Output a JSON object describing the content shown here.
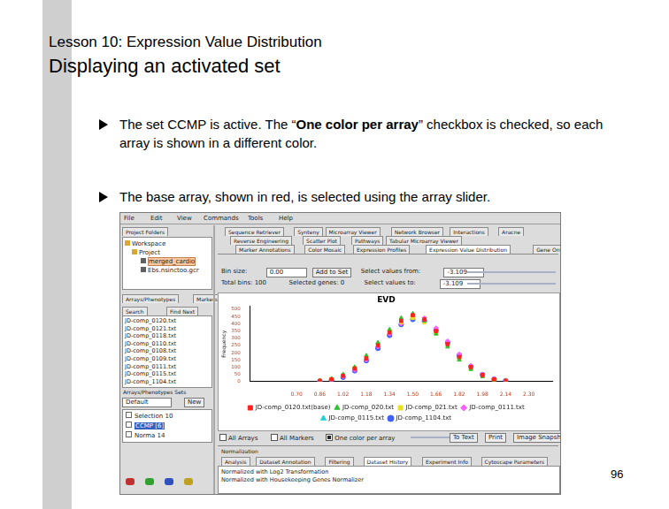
{
  "slide": {
    "header": "Lesson 10: Expression Value Distribution",
    "title": "Displaying an activated set",
    "bullets": [
      [
        {
          "text": "The set CCMP is active. The “"
        },
        {
          "text": "One color per array",
          "bold": true
        },
        {
          "text": "” checkbox is checked, so each array is shown in a different color."
        }
      ],
      [
        {
          "text": "The base array, shown in red, is selected using the array slider."
        }
      ]
    ],
    "page": "96"
  },
  "screenshot": {
    "menu": [
      "File",
      "Edit",
      "View",
      "Commands",
      "Tools",
      "Help"
    ],
    "project_tab": "Project Folders",
    "tree": [
      "Workspace",
      "Project",
      "merged_cardio",
      "Ebs.nsinctoo.gcr"
    ],
    "left_tabs": [
      "Arrays/Phenotypes",
      "Markers"
    ],
    "search_tabs": [
      "Search",
      "Find Next"
    ],
    "arrays": [
      "JD-comp_0120.txt",
      "JD-comp_0121.txt",
      "JD-comp_0118.txt",
      "JD-comp_0110.txt",
      "JD-comp_0108.txt",
      "JD-comp_0109.txt",
      "JD-comp_0111.txt",
      "JD-comp_0115.txt",
      "JD-comp_1104.txt"
    ],
    "sets_header": "Arrays/Phenotypes Sets",
    "sets_dropdown": "Default",
    "sets_button": "New",
    "sets": [
      "Selection 10",
      "CCMP [6]",
      "Norma 14"
    ],
    "tab_rows": [
      [
        "Sequence Retriever",
        "Synteny",
        "Microarray Viewer",
        "Network Browser",
        "Interactions",
        "Aracne"
      ],
      [
        "Reverse Engineering",
        "Scatter Plot",
        "Pathways",
        "Tabular Microarray Viewer"
      ],
      [
        "Marker Annotations",
        "Color Mosaic",
        "Expression Profiles",
        "Expression Value Distribution",
        "Gene Ontology"
      ]
    ],
    "controls": [
      [
        {
          "text": "Bin size:"
        },
        {
          "text": "0.00",
          "field": true
        },
        {
          "text": "Add to Set",
          "button": true
        },
        {
          "text": "Select values from:"
        },
        {
          "text": "-3.109",
          "field": true
        }
      ],
      [
        {
          "text": "Total bins: 100"
        },
        {
          "text": "Selected genes: 0"
        },
        {
          "text": "Select values to:"
        },
        {
          "text": "-3.109",
          "field": true
        }
      ]
    ],
    "bottom_controls": [
      {
        "label": "All Arrays",
        "checked": false
      },
      {
        "label": "All Markers",
        "checked": false
      },
      {
        "label": "One color per array",
        "checked": true
      }
    ],
    "buttons": [
      "To Text",
      "Print",
      "Image Snapshot"
    ],
    "bottom_header": "Normalization",
    "bottom_tabs": [
      "Analysis",
      "Dataset Annotation",
      "Filtering",
      "Dataset History",
      "Experiment Info",
      "Cytoscape Parameters"
    ],
    "history": [
      "Normalized with Log2 Transformation",
      "Normalized with Housekeeping Genes Normalizer"
    ]
  },
  "chart_data": {
    "type": "scatter",
    "title": "EVD",
    "y_label": "Frequency",
    "x": [
      0.86,
      0.94,
      1.02,
      1.1,
      1.18,
      1.26,
      1.34,
      1.42,
      1.5,
      1.58,
      1.66,
      1.74,
      1.82,
      1.9,
      1.98,
      2.06,
      2.14
    ],
    "series": [
      {
        "name": "JD-comp_0120.txt(base)",
        "color": "#ff2020",
        "marker": "square",
        "values": [
          5,
          15,
          40,
          90,
          160,
          250,
          340,
          420,
          460,
          430,
          350,
          260,
          170,
          100,
          45,
          15,
          5
        ]
      },
      {
        "name": "JD-comp_020.txt",
        "color": "#30c030",
        "marker": "triangle",
        "values": [
          8,
          20,
          50,
          100,
          180,
          270,
          360,
          440,
          470,
          420,
          330,
          240,
          150,
          85,
          35,
          12,
          4
        ]
      },
      {
        "name": "JD-comp_021.txt",
        "color": "#e8e020",
        "marker": "square",
        "values": [
          6,
          18,
          45,
          95,
          170,
          260,
          350,
          410,
          440,
          410,
          340,
          250,
          160,
          90,
          40,
          14,
          5
        ]
      },
      {
        "name": "JD-comp_0111.txt",
        "color": "#ff60ff",
        "marker": "diamond",
        "values": [
          4,
          12,
          35,
          80,
          150,
          240,
          330,
          400,
          450,
          440,
          370,
          280,
          190,
          110,
          50,
          18,
          6
        ]
      },
      {
        "name": "JD-comp_0115.txt",
        "color": "#20d0e0",
        "marker": "triangle",
        "values": [
          5,
          14,
          38,
          85,
          155,
          245,
          335,
          415,
          455,
          425,
          345,
          255,
          165,
          95,
          42,
          16,
          5
        ]
      },
      {
        "name": "JD-comp_1104.txt",
        "color": "#4060ff",
        "marker": "circle",
        "values": [
          3,
          10,
          30,
          75,
          145,
          230,
          320,
          395,
          430,
          420,
          355,
          270,
          180,
          105,
          48,
          17,
          6
        ]
      }
    ],
    "xlim": [
      0.38,
      2.46
    ],
    "xticks": [
      {
        "value": 0.7,
        "label": "0.70"
      },
      {
        "value": 0.86,
        "label": "0.86"
      },
      {
        "value": 1.02,
        "label": "1.02"
      },
      {
        "value": 1.18,
        "label": "1.18"
      },
      {
        "value": 1.34,
        "label": "1.34"
      },
      {
        "value": 1.5,
        "label": "1.50"
      },
      {
        "value": 1.66,
        "label": "1.66"
      },
      {
        "value": 1.82,
        "label": "1.82"
      },
      {
        "value": 1.98,
        "label": "1.98"
      },
      {
        "value": 2.14,
        "label": "2.14"
      },
      {
        "value": 2.3,
        "label": "2.30"
      }
    ],
    "ylim": [
      0,
      520
    ],
    "yticks": [
      0,
      50,
      100,
      150,
      200,
      250,
      300,
      350,
      400,
      450,
      500
    ],
    "grid": false,
    "legend": "bottom"
  }
}
